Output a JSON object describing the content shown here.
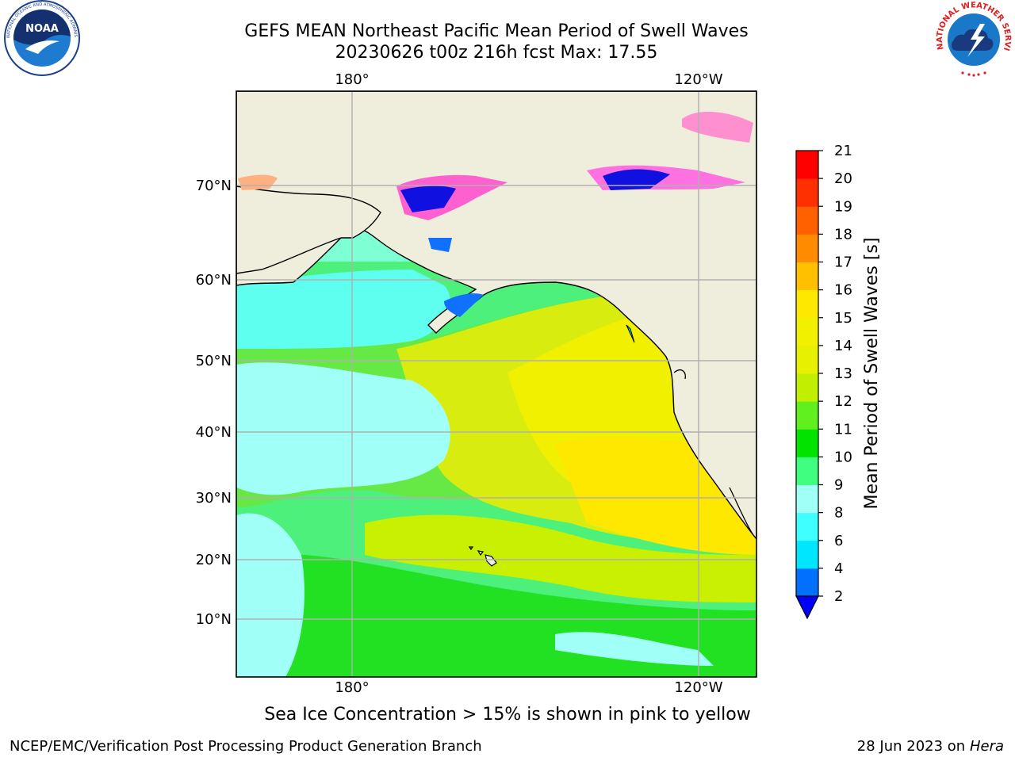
{
  "title": "GEFS MEAN Northeast Pacific Mean Period of Swell Waves",
  "subtitle": "20230626 t00z 216h fcst   Max: 17.55",
  "map": {
    "lon_labels_top": [
      "180°",
      "120°W"
    ],
    "lon_labels_bottom": [
      "180°",
      "120°W"
    ],
    "lat_labels": [
      "70°N",
      "60°N",
      "50°N",
      "40°N",
      "30°N",
      "20°N",
      "10°N"
    ],
    "colors": {
      "land": "#efeedc",
      "coast": "#000000",
      "grid": "#b0b0b0"
    }
  },
  "colorbar": {
    "label": "Mean Period of Swell Waves [s]",
    "ticks": [
      "2",
      "4",
      "6",
      "8",
      "9",
      "10",
      "11",
      "12",
      "13",
      "14",
      "15",
      "16",
      "17",
      "18",
      "19",
      "20",
      "21"
    ],
    "colors": [
      "#0070ff",
      "#00e6ff",
      "#40ffff",
      "#a0fff6",
      "#40ff80",
      "#00e400",
      "#60f020",
      "#c0f000",
      "#e6f000",
      "#f0f000",
      "#ffe800",
      "#ffc000",
      "#ff8c00",
      "#ff6000",
      "#ff3000",
      "#ff0000"
    ],
    "extend_color": "#0000ff"
  },
  "note": "Sea Ice Concentration > 15% is shown in pink to yellow",
  "footer": {
    "left": "NCEP/EMC/Verification Post Processing Product Generation Branch",
    "right_date": "28 Jun 2023 on",
    "right_host": "Hera"
  },
  "logos": {
    "left_icon": "noaa-logo",
    "right_icon": "nws-logo",
    "noaa_text": "NOAA",
    "noaa_ring": "NATIONAL OCEANIC AND ATMOSPHERIC ADMINISTRATION · U.S. DEPARTMENT OF COMMERCE",
    "nws_ring": "NATIONAL WEATHER SERVICE"
  }
}
